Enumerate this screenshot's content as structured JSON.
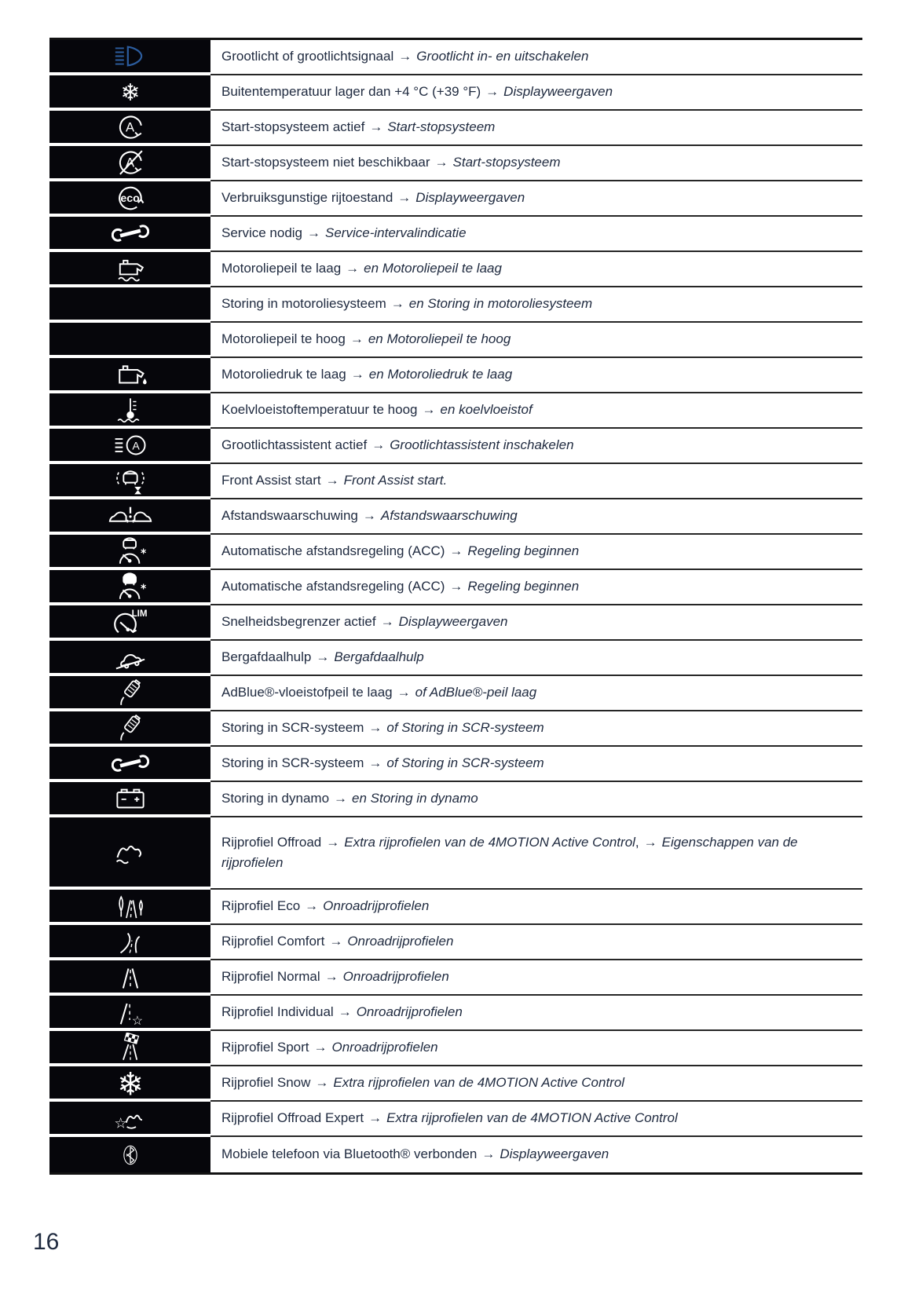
{
  "page": {
    "number": "16"
  },
  "arrow_char": "→",
  "colors": {
    "accent_blue": "#2c5d9f",
    "icon_cell_bg": "#06060b",
    "icon_glyph": "#ffffff",
    "text": "#202b40",
    "rule": "#262626"
  },
  "table": {
    "rows": [
      {
        "icon": "high-beam-icon",
        "accent": true,
        "parts": [
          {
            "k": "label",
            "t": "Grootlicht of grootlichtsignaal"
          },
          {
            "k": "arrow"
          },
          {
            "k": "ref",
            "t": "Grootlicht in- en uitschakelen"
          }
        ]
      },
      {
        "icon": "snowflake-icon",
        "parts": [
          {
            "k": "label",
            "t": "Buitentemperatuur lager dan +4 °C (+39 °F)"
          },
          {
            "k": "arrow"
          },
          {
            "k": "ref",
            "t": "Displayweergaven"
          }
        ]
      },
      {
        "icon": "start-stop-active-icon",
        "parts": [
          {
            "k": "label",
            "t": "Start-stopsysteem actief"
          },
          {
            "k": "arrow"
          },
          {
            "k": "ref",
            "t": "Start-stopsysteem"
          }
        ]
      },
      {
        "icon": "start-stop-off-icon",
        "parts": [
          {
            "k": "label",
            "t": "Start-stopsysteem niet beschikbaar"
          },
          {
            "k": "arrow"
          },
          {
            "k": "ref",
            "t": "Start-stopsysteem"
          }
        ]
      },
      {
        "icon": "eco-icon",
        "parts": [
          {
            "k": "label",
            "t": "Verbruiksgunstige rijtoestand"
          },
          {
            "k": "arrow"
          },
          {
            "k": "ref",
            "t": "Displayweergaven"
          }
        ]
      },
      {
        "icon": "wrench-icon",
        "parts": [
          {
            "k": "label",
            "t": "Service nodig"
          },
          {
            "k": "arrow"
          },
          {
            "k": "ref",
            "t": "Service-intervalindicatie"
          }
        ]
      },
      {
        "icon": "oil-level-icon",
        "parts": [
          {
            "k": "label",
            "t": "Motoroliepeil te laag"
          },
          {
            "k": "arrow"
          },
          {
            "k": "ref",
            "t": "en Motoroliepeil te laag"
          }
        ]
      },
      {
        "icon": null,
        "parts": [
          {
            "k": "label",
            "t": "Storing in motoroliesysteem"
          },
          {
            "k": "arrow"
          },
          {
            "k": "ref",
            "t": "en Storing in motoroliesysteem"
          }
        ]
      },
      {
        "icon": null,
        "parts": [
          {
            "k": "label",
            "t": "Motoroliepeil te hoog"
          },
          {
            "k": "arrow"
          },
          {
            "k": "ref",
            "t": "en Motoroliepeil te hoog"
          }
        ]
      },
      {
        "icon": "oil-pressure-icon",
        "parts": [
          {
            "k": "label",
            "t": "Motoroliedruk te laag"
          },
          {
            "k": "arrow"
          },
          {
            "k": "ref",
            "t": "en Motoroliedruk te laag"
          }
        ]
      },
      {
        "icon": "coolant-temp-icon",
        "parts": [
          {
            "k": "label",
            "t": "Koelvloeistoftemperatuur te hoog"
          },
          {
            "k": "arrow"
          },
          {
            "k": "ref",
            "t": "en koelvloeistof"
          }
        ]
      },
      {
        "icon": "high-beam-assist-icon",
        "parts": [
          {
            "k": "label",
            "t": "Grootlichtassistent actief"
          },
          {
            "k": "arrow"
          },
          {
            "k": "ref",
            "t": "Grootlichtassistent inschakelen"
          }
        ]
      },
      {
        "icon": "front-assist-icon",
        "parts": [
          {
            "k": "label",
            "t": "Front Assist start"
          },
          {
            "k": "arrow"
          },
          {
            "k": "ref",
            "t": "Front Assist start."
          }
        ]
      },
      {
        "icon": "distance-warning-icon",
        "parts": [
          {
            "k": "label",
            "t": "Afstandswaarschuwing"
          },
          {
            "k": "arrow"
          },
          {
            "k": "ref",
            "t": "Afstandswaarschuwing"
          }
        ]
      },
      {
        "icon": "acc-icon",
        "parts": [
          {
            "k": "label",
            "t": "Automatische afstandsregeling (ACC)"
          },
          {
            "k": "arrow"
          },
          {
            "k": "ref",
            "t": "Regeling beginnen"
          }
        ]
      },
      {
        "icon": "acc-active-icon",
        "parts": [
          {
            "k": "label",
            "t": "Automatische afstandsregeling (ACC)"
          },
          {
            "k": "arrow"
          },
          {
            "k": "ref",
            "t": "Regeling beginnen"
          }
        ]
      },
      {
        "icon": "speed-limiter-icon",
        "parts": [
          {
            "k": "label",
            "t": "Snelheidsbegrenzer actief"
          },
          {
            "k": "arrow"
          },
          {
            "k": "ref",
            "t": "Displayweergaven"
          }
        ]
      },
      {
        "icon": "hill-descent-icon",
        "parts": [
          {
            "k": "label",
            "t": "Bergafdaalhulp"
          },
          {
            "k": "arrow"
          },
          {
            "k": "ref",
            "t": "Bergafdaalhulp"
          }
        ]
      },
      {
        "icon": "adblue-icon",
        "parts": [
          {
            "k": "label",
            "t": "AdBlue®-vloeistofpeil te laag"
          },
          {
            "k": "arrow"
          },
          {
            "k": "ref",
            "t": "of AdBlue®-peil laag"
          }
        ]
      },
      {
        "icon": "adblue-icon",
        "parts": [
          {
            "k": "label",
            "t": "Storing in SCR-systeem"
          },
          {
            "k": "arrow"
          },
          {
            "k": "ref",
            "t": "of Storing in SCR-systeem"
          }
        ]
      },
      {
        "icon": "wrench-icon",
        "parts": [
          {
            "k": "label",
            "t": "Storing in SCR-systeem"
          },
          {
            "k": "arrow"
          },
          {
            "k": "ref",
            "t": "of Storing in SCR-systeem"
          }
        ]
      },
      {
        "icon": "battery-icon",
        "parts": [
          {
            "k": "label",
            "t": "Storing in dynamo"
          },
          {
            "k": "arrow"
          },
          {
            "k": "ref",
            "t": "en Storing in dynamo"
          }
        ]
      },
      {
        "icon": "offroad-icon",
        "tall": true,
        "parts": [
          {
            "k": "label",
            "t": "Rijprofiel Offroad"
          },
          {
            "k": "arrow"
          },
          {
            "k": "ref",
            "t": "Extra rijprofielen van de 4MOTION Active Control"
          },
          {
            "k": "plain",
            "t": ","
          },
          {
            "k": "arrow"
          },
          {
            "k": "ref",
            "t": "Eigenschappen van de rijprofielen"
          }
        ]
      },
      {
        "icon": "eco-profile-icon",
        "parts": [
          {
            "k": "label",
            "t": "Rijprofiel Eco"
          },
          {
            "k": "arrow"
          },
          {
            "k": "ref",
            "t": "Onroadrijprofielen"
          }
        ]
      },
      {
        "icon": "comfort-profile-icon",
        "parts": [
          {
            "k": "label",
            "t": "Rijprofiel Comfort"
          },
          {
            "k": "arrow"
          },
          {
            "k": "ref",
            "t": "Onroadrijprofielen"
          }
        ]
      },
      {
        "icon": "normal-profile-icon",
        "parts": [
          {
            "k": "label",
            "t": "Rijprofiel Normal"
          },
          {
            "k": "arrow"
          },
          {
            "k": "ref",
            "t": "Onroadrijprofielen"
          }
        ]
      },
      {
        "icon": "individual-profile-icon",
        "parts": [
          {
            "k": "label",
            "t": "Rijprofiel Individual"
          },
          {
            "k": "arrow"
          },
          {
            "k": "ref",
            "t": "Onroadrijprofielen"
          }
        ]
      },
      {
        "icon": "sport-profile-icon",
        "parts": [
          {
            "k": "label",
            "t": "Rijprofiel Sport"
          },
          {
            "k": "arrow"
          },
          {
            "k": "ref",
            "t": "Onroadrijprofielen"
          }
        ]
      },
      {
        "icon": "snow-profile-icon",
        "parts": [
          {
            "k": "label",
            "t": "Rijprofiel Snow"
          },
          {
            "k": "arrow"
          },
          {
            "k": "ref",
            "t": "Extra rijprofielen van de 4MOTION Active Control"
          }
        ]
      },
      {
        "icon": "offroad-expert-icon",
        "parts": [
          {
            "k": "label",
            "t": "Rijprofiel Offroad Expert"
          },
          {
            "k": "arrow"
          },
          {
            "k": "ref",
            "t": "Extra rijprofielen van de 4MOTION Active Control"
          }
        ]
      },
      {
        "icon": "bluetooth-icon",
        "parts": [
          {
            "k": "label",
            "t": "Mobiele telefoon via Bluetooth® verbonden"
          },
          {
            "k": "arrow"
          },
          {
            "k": "ref",
            "t": "Displayweergaven"
          }
        ]
      }
    ]
  }
}
